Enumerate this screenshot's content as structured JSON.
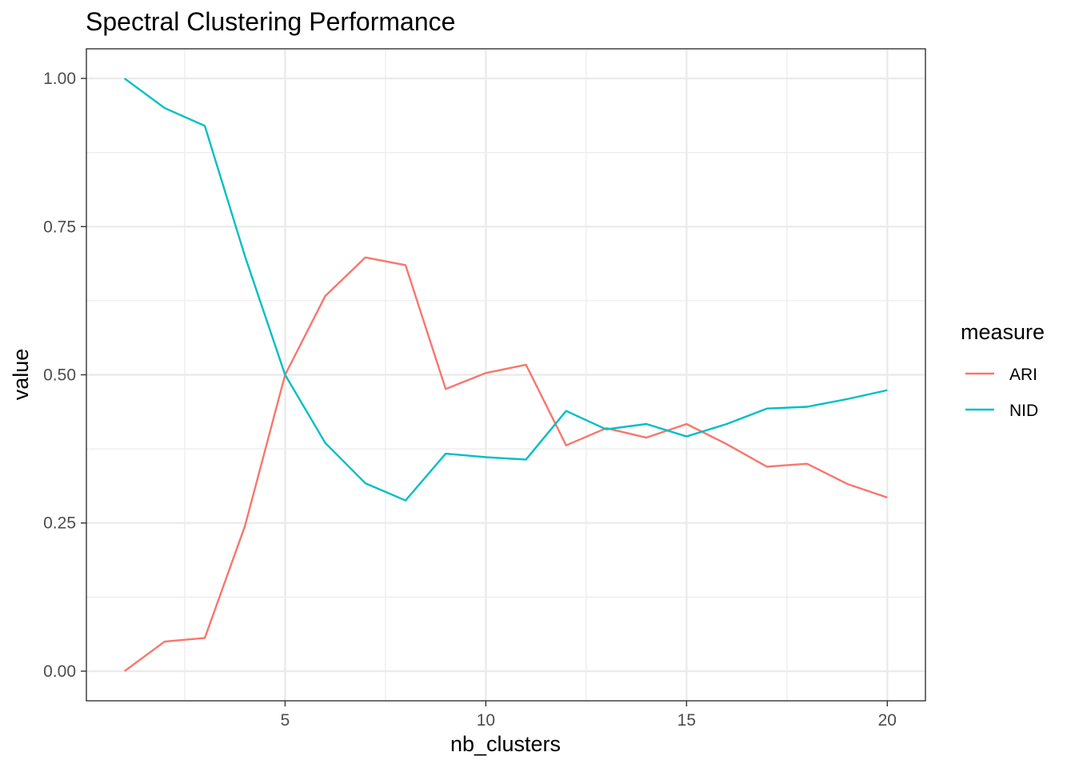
{
  "chart_data": {
    "type": "line",
    "title": "Spectral Clustering Performance",
    "xlabel": "nb_clusters",
    "ylabel": "value",
    "xlim": [
      0.05,
      20.95
    ],
    "ylim": [
      -0.05,
      1.05
    ],
    "x_ticks": [
      5,
      10,
      15,
      20
    ],
    "x_tick_labels": [
      "5",
      "10",
      "15",
      "20"
    ],
    "x_minor_ticks": [
      2.5,
      7.5,
      12.5,
      17.5
    ],
    "y_ticks": [
      0,
      0.25,
      0.5,
      0.75,
      1
    ],
    "y_tick_labels": [
      "0.00",
      "0.25",
      "0.50",
      "0.75",
      "1.00"
    ],
    "y_minor_ticks": [
      0.125,
      0.375,
      0.625,
      0.875
    ],
    "grid": true,
    "legend": {
      "title": "measure",
      "position": "right"
    },
    "x": [
      1,
      2,
      3,
      4,
      5,
      6,
      7,
      8,
      9,
      10,
      11,
      12,
      13,
      14,
      15,
      16,
      17,
      18,
      19,
      20
    ],
    "series": [
      {
        "name": "ARI",
        "color": "#F8766D",
        "values": [
          0.0,
          0.05,
          0.056,
          0.245,
          0.5,
          0.633,
          0.698,
          0.685,
          0.476,
          0.503,
          0.517,
          0.381,
          0.41,
          0.394,
          0.417,
          0.383,
          0.345,
          0.35,
          0.316,
          0.293
        ]
      },
      {
        "name": "NID",
        "color": "#00BFC4",
        "values": [
          1.0,
          0.95,
          0.92,
          0.7,
          0.5,
          0.385,
          0.317,
          0.288,
          0.367,
          0.361,
          0.357,
          0.439,
          0.408,
          0.417,
          0.396,
          0.417,
          0.443,
          0.446,
          0.459,
          0.474
        ]
      }
    ]
  }
}
